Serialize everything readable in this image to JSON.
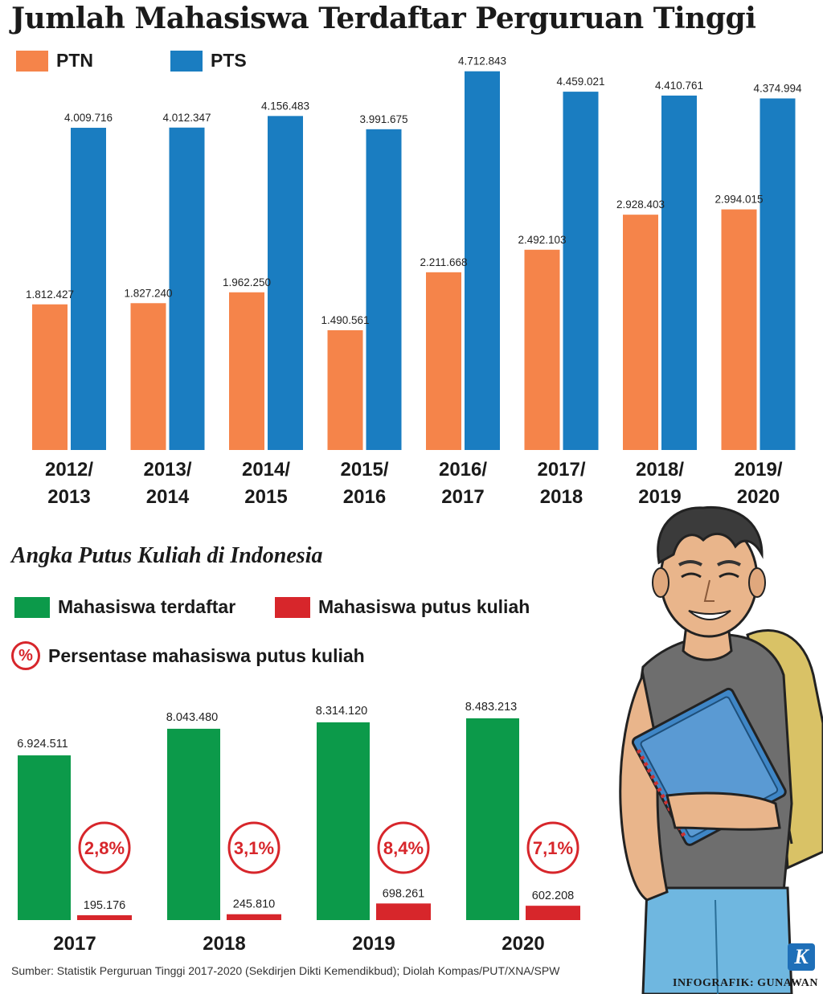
{
  "title": "Jumlah Mahasiswa Terdaftar Perguruan Tinggi",
  "subtitle": "Angka Putus Kuliah di Indonesia",
  "legend_top": [
    {
      "label": "PTN",
      "color": "#f5844a"
    },
    {
      "label": "PTS",
      "color": "#1a7dc1"
    }
  ],
  "legend_bottom": [
    {
      "label": "Mahasiswa terdaftar",
      "color": "#0c9a4a"
    },
    {
      "label": "Mahasiswa putus kuliah",
      "color": "#d7262b"
    }
  ],
  "legend_pct": {
    "symbol": "%",
    "label": "Persentase mahasiswa putus kuliah"
  },
  "source": "Sumber: Statistik Perguruan Tinggi 2017-2020 (Sekdirjen Dikti Kemendikbud); Diolah Kompas/PUT/XNA/SPW",
  "credit": "INFOGRAFIK: GUNAWAN",
  "logo_letter": "K",
  "chart_data": [
    {
      "type": "bar",
      "title": "Jumlah Mahasiswa Terdaftar Perguruan Tinggi",
      "categories": [
        [
          "2012/",
          "2013"
        ],
        [
          "2013/",
          "2014"
        ],
        [
          "2014/",
          "2015"
        ],
        [
          "2015/",
          "2016"
        ],
        [
          "2016/",
          "2017"
        ],
        [
          "2017/",
          "2018"
        ],
        [
          "2018/",
          "2019"
        ],
        [
          "2019/",
          "2020"
        ]
      ],
      "series": [
        {
          "name": "PTN",
          "color": "#f5844a",
          "values": [
            1812427,
            1827240,
            1962250,
            1490561,
            2211668,
            2492103,
            2928403,
            2994015
          ],
          "labels": [
            "1.812.427",
            "1.827.240",
            "1.962.250",
            "1.490.561",
            "2.211.668",
            "2.492.103",
            "2.928.403",
            "2.994.015"
          ]
        },
        {
          "name": "PTS",
          "color": "#1a7dc1",
          "values": [
            4009716,
            4012347,
            4156483,
            3991675,
            4712843,
            4459021,
            4410761,
            4374994
          ],
          "labels": [
            "4.009.716",
            "4.012.347",
            "4.156.483",
            "3.991.675",
            "4.712.843",
            "4.459.021",
            "4.410.761",
            "4.374.994"
          ]
        }
      ],
      "ylim": [
        0,
        5000000
      ],
      "legend": "top-left",
      "grid": false
    },
    {
      "type": "bar",
      "title": "Angka Putus Kuliah di Indonesia",
      "categories": [
        "2017",
        "2018",
        "2019",
        "2020"
      ],
      "series": [
        {
          "name": "Mahasiswa terdaftar",
          "color": "#0c9a4a",
          "values": [
            6924511,
            8043480,
            8314120,
            8483213
          ],
          "labels": [
            "6.924.511",
            "8.043.480",
            "8.314.120",
            "8.483.213"
          ]
        },
        {
          "name": "Mahasiswa putus kuliah",
          "color": "#d7262b",
          "values": [
            195176,
            245810,
            698261,
            602208
          ],
          "labels": [
            "195.176",
            "245.810",
            "698.261",
            "602.208"
          ]
        }
      ],
      "percent": {
        "name": "Persentase mahasiswa putus kuliah",
        "values": [
          2.8,
          3.1,
          8.4,
          7.1
        ],
        "labels": [
          "2,8%",
          "3,1%",
          "8,4%",
          "7,1%"
        ]
      },
      "ylim": [
        0,
        10000000
      ],
      "legend": "top-left",
      "grid": false
    }
  ]
}
